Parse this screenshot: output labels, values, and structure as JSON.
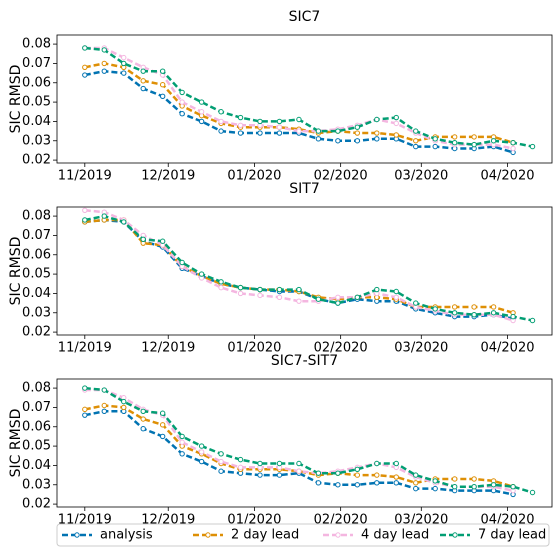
{
  "chart_data": [
    {
      "type": "line",
      "title": "SIC7",
      "y_label": "SIC RMSD",
      "x": [
        0,
        7,
        14,
        21,
        28,
        35,
        42,
        49,
        56,
        63,
        70,
        77,
        84,
        91,
        98,
        105,
        112,
        119,
        126,
        133,
        140,
        147,
        154,
        161
      ],
      "xlim": [
        -10,
        168
      ],
      "xticks": [
        {
          "value": 0,
          "label": "11/2019"
        },
        {
          "value": 30,
          "label": "12/2019"
        },
        {
          "value": 61,
          "label": "01/2020"
        },
        {
          "value": 92,
          "label": "02/2020"
        },
        {
          "value": 121,
          "label": "03/2020"
        },
        {
          "value": 152,
          "label": "04/2020"
        }
      ],
      "ylim": [
        0.0185,
        0.0847
      ],
      "yticks": [
        0.02,
        0.03,
        0.04,
        0.05,
        0.06,
        0.07,
        0.08
      ],
      "series": [
        {
          "name": "analysis",
          "color": "#0173b2",
          "values": [
            0.064,
            0.066,
            0.065,
            0.057,
            0.053,
            0.044,
            0.04,
            0.035,
            0.034,
            0.034,
            0.034,
            0.034,
            0.031,
            0.03,
            0.03,
            0.031,
            0.031,
            0.027,
            0.027,
            0.026,
            0.026,
            0.027,
            0.024,
            null
          ]
        },
        {
          "name": "2 day lead",
          "color": "#de8f05",
          "values": [
            0.068,
            0.07,
            0.068,
            0.061,
            0.059,
            0.048,
            0.043,
            0.039,
            0.037,
            0.037,
            0.037,
            0.036,
            0.034,
            0.035,
            0.034,
            0.034,
            0.033,
            0.03,
            0.032,
            0.032,
            0.032,
            0.032,
            0.029,
            null
          ]
        },
        {
          "name": "4 day lead",
          "color": "#f4b6e0",
          "values": [
            0.078,
            0.078,
            0.073,
            0.068,
            0.064,
            0.05,
            0.045,
            0.04,
            0.038,
            0.038,
            0.037,
            0.035,
            0.035,
            0.036,
            0.038,
            0.041,
            0.039,
            0.034,
            0.03,
            0.028,
            0.028,
            0.028,
            0.026,
            null
          ]
        },
        {
          "name": "7 day lead",
          "color": "#029e73",
          "values": [
            0.078,
            0.077,
            0.07,
            0.066,
            0.066,
            0.055,
            0.05,
            0.045,
            0.042,
            0.04,
            0.04,
            0.041,
            0.035,
            0.035,
            0.037,
            0.041,
            0.042,
            0.035,
            0.031,
            0.029,
            0.028,
            0.03,
            0.029,
            0.027
          ]
        }
      ]
    },
    {
      "type": "line",
      "title": "SIT7",
      "y_label": "SIC RMSD",
      "x": [
        0,
        7,
        14,
        21,
        28,
        35,
        42,
        49,
        56,
        63,
        70,
        77,
        84,
        91,
        98,
        105,
        112,
        119,
        126,
        133,
        140,
        147,
        154,
        161
      ],
      "xlim": [
        -10,
        168
      ],
      "xticks": [
        {
          "value": 0,
          "label": "11/2019"
        },
        {
          "value": 30,
          "label": "12/2019"
        },
        {
          "value": 61,
          "label": "01/2020"
        },
        {
          "value": 92,
          "label": "02/2020"
        },
        {
          "value": 121,
          "label": "03/2020"
        },
        {
          "value": 152,
          "label": "04/2020"
        }
      ],
      "ylim": [
        0.0185,
        0.0847
      ],
      "yticks": [
        0.02,
        0.03,
        0.04,
        0.05,
        0.06,
        0.07,
        0.08
      ],
      "series": [
        {
          "name": "analysis",
          "color": "#0173b2",
          "values": [
            0.077,
            0.078,
            0.077,
            0.067,
            0.064,
            0.053,
            0.049,
            0.045,
            0.043,
            0.042,
            0.041,
            0.041,
            0.037,
            0.035,
            0.037,
            0.036,
            0.036,
            0.032,
            0.03,
            0.028,
            0.028,
            0.029,
            0.027,
            null
          ]
        },
        {
          "name": "2 day lead",
          "color": "#de8f05",
          "values": [
            0.077,
            0.078,
            0.078,
            0.066,
            0.065,
            0.054,
            0.049,
            0.045,
            0.043,
            0.042,
            0.042,
            0.041,
            0.038,
            0.037,
            0.038,
            0.038,
            0.037,
            0.033,
            0.033,
            0.033,
            0.033,
            0.033,
            0.03,
            null
          ]
        },
        {
          "name": "4 day lead",
          "color": "#f4b6e0",
          "values": [
            0.083,
            0.082,
            0.078,
            0.07,
            0.065,
            0.054,
            0.048,
            0.043,
            0.04,
            0.039,
            0.038,
            0.036,
            0.036,
            0.038,
            0.038,
            0.04,
            0.038,
            0.033,
            0.031,
            0.029,
            0.029,
            0.029,
            0.026,
            null
          ]
        },
        {
          "name": "7 day lead",
          "color": "#029e73",
          "values": [
            0.078,
            0.08,
            0.077,
            0.068,
            0.067,
            0.056,
            0.05,
            0.046,
            0.043,
            0.042,
            0.042,
            0.042,
            0.037,
            0.035,
            0.038,
            0.042,
            0.041,
            0.035,
            0.032,
            0.03,
            0.029,
            0.03,
            0.028,
            0.026
          ]
        }
      ]
    },
    {
      "type": "line",
      "title": "SIC7-SIT7",
      "y_label": "SIC RMSD",
      "x": [
        0,
        7,
        14,
        21,
        28,
        35,
        42,
        49,
        56,
        63,
        70,
        77,
        84,
        91,
        98,
        105,
        112,
        119,
        126,
        133,
        140,
        147,
        154,
        161
      ],
      "xlim": [
        -10,
        168
      ],
      "xticks": [
        {
          "value": 0,
          "label": "11/2019"
        },
        {
          "value": 30,
          "label": "12/2019"
        },
        {
          "value": 61,
          "label": "01/2020"
        },
        {
          "value": 92,
          "label": "02/2020"
        },
        {
          "value": 121,
          "label": "03/2020"
        },
        {
          "value": 152,
          "label": "04/2020"
        }
      ],
      "ylim": [
        0.0185,
        0.0847
      ],
      "yticks": [
        0.02,
        0.03,
        0.04,
        0.05,
        0.06,
        0.07,
        0.08
      ],
      "series": [
        {
          "name": "analysis",
          "color": "#0173b2",
          "values": [
            0.066,
            0.068,
            0.068,
            0.059,
            0.055,
            0.046,
            0.042,
            0.037,
            0.036,
            0.035,
            0.035,
            0.036,
            0.031,
            0.03,
            0.03,
            0.031,
            0.031,
            0.028,
            0.028,
            0.027,
            0.027,
            0.027,
            0.025,
            null
          ]
        },
        {
          "name": "2 day lead",
          "color": "#de8f05",
          "values": [
            0.069,
            0.071,
            0.07,
            0.064,
            0.061,
            0.05,
            0.046,
            0.041,
            0.038,
            0.038,
            0.038,
            0.037,
            0.035,
            0.036,
            0.035,
            0.035,
            0.034,
            0.031,
            0.033,
            0.033,
            0.033,
            0.032,
            0.029,
            null
          ]
        },
        {
          "name": "4 day lead",
          "color": "#f4b6e0",
          "values": [
            0.079,
            0.079,
            0.075,
            0.069,
            0.066,
            0.052,
            0.047,
            0.042,
            0.039,
            0.039,
            0.039,
            0.037,
            0.036,
            0.037,
            0.039,
            0.041,
            0.039,
            0.034,
            0.031,
            0.029,
            0.029,
            0.029,
            0.027,
            null
          ]
        },
        {
          "name": "7 day lead",
          "color": "#029e73",
          "values": [
            0.08,
            0.079,
            0.073,
            0.068,
            0.067,
            0.055,
            0.05,
            0.046,
            0.043,
            0.041,
            0.041,
            0.041,
            0.036,
            0.036,
            0.038,
            0.041,
            0.041,
            0.035,
            0.032,
            0.029,
            0.029,
            0.03,
            0.029,
            0.026
          ]
        }
      ]
    }
  ]
}
